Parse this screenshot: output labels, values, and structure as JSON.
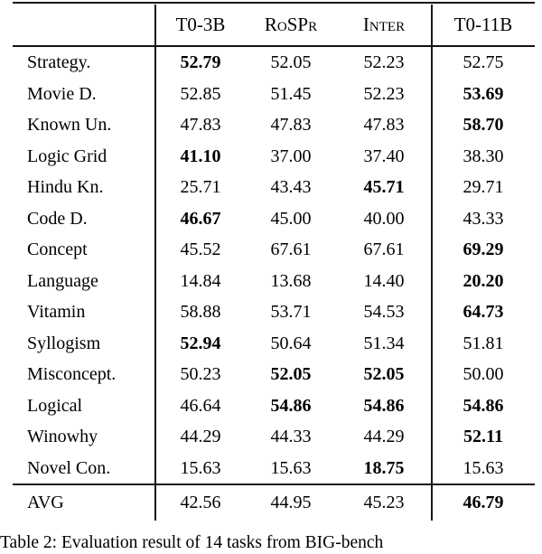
{
  "table": {
    "columns": [
      "T0-3B",
      "RoSPr",
      "Inter",
      "T0-11B"
    ],
    "rows": [
      {
        "label": "Strategy.",
        "values": [
          "52.79",
          "52.05",
          "52.23",
          "52.75"
        ],
        "bold": [
          true,
          false,
          false,
          false
        ]
      },
      {
        "label": "Movie D.",
        "values": [
          "52.85",
          "51.45",
          "52.23",
          "53.69"
        ],
        "bold": [
          false,
          false,
          false,
          true
        ]
      },
      {
        "label": "Known Un.",
        "values": [
          "47.83",
          "47.83",
          "47.83",
          "58.70"
        ],
        "bold": [
          false,
          false,
          false,
          true
        ]
      },
      {
        "label": "Logic Grid",
        "values": [
          "41.10",
          "37.00",
          "37.40",
          "38.30"
        ],
        "bold": [
          true,
          false,
          false,
          false
        ]
      },
      {
        "label": "Hindu Kn.",
        "values": [
          "25.71",
          "43.43",
          "45.71",
          "29.71"
        ],
        "bold": [
          false,
          false,
          true,
          false
        ]
      },
      {
        "label": "Code D.",
        "values": [
          "46.67",
          "45.00",
          "40.00",
          "43.33"
        ],
        "bold": [
          true,
          false,
          false,
          false
        ]
      },
      {
        "label": "Concept",
        "values": [
          "45.52",
          "67.61",
          "67.61",
          "69.29"
        ],
        "bold": [
          false,
          false,
          false,
          true
        ]
      },
      {
        "label": "Language",
        "values": [
          "14.84",
          "13.68",
          "14.40",
          "20.20"
        ],
        "bold": [
          false,
          false,
          false,
          true
        ]
      },
      {
        "label": "Vitamin",
        "values": [
          "58.88",
          "53.71",
          "54.53",
          "64.73"
        ],
        "bold": [
          false,
          false,
          false,
          true
        ]
      },
      {
        "label": "Syllogism",
        "values": [
          "52.94",
          "50.64",
          "51.34",
          "51.81"
        ],
        "bold": [
          true,
          false,
          false,
          false
        ]
      },
      {
        "label": "Misconcept.",
        "values": [
          "50.23",
          "52.05",
          "52.05",
          "50.00"
        ],
        "bold": [
          false,
          true,
          true,
          false
        ]
      },
      {
        "label": "Logical",
        "values": [
          "46.64",
          "54.86",
          "54.86",
          "54.86"
        ],
        "bold": [
          false,
          true,
          true,
          true
        ]
      },
      {
        "label": "Winowhy",
        "values": [
          "44.29",
          "44.33",
          "44.29",
          "52.11"
        ],
        "bold": [
          false,
          false,
          false,
          true
        ]
      },
      {
        "label": "Novel Con.",
        "values": [
          "15.63",
          "15.63",
          "18.75",
          "15.63"
        ],
        "bold": [
          false,
          false,
          true,
          false
        ]
      }
    ],
    "avg": {
      "label": "AVG",
      "values": [
        "42.56",
        "44.95",
        "45.23",
        "46.79"
      ],
      "bold": [
        false,
        false,
        false,
        true
      ]
    }
  },
  "caption": "Table 2: Evaluation result of 14 tasks from BIG-bench"
}
